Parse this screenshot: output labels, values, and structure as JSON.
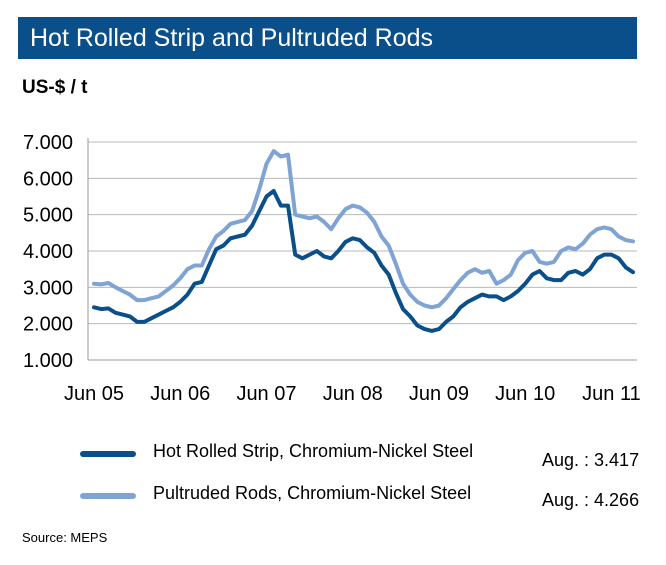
{
  "header": {
    "title": "Hot Rolled Strip and Pultruded Rods",
    "unit": "US-$ / t"
  },
  "legend": [
    {
      "label": "Hot Rolled Strip, Chromium-Nickel Steel",
      "note": "Aug. : 3.417"
    },
    {
      "label": "Pultruded Rods, Chromium-Nickel Steel",
      "note": "Aug. : 4.266"
    }
  ],
  "source": "Source: MEPS",
  "colors": {
    "hot_rolled": "#0b4f8a",
    "pultruded": "#7fa4d3",
    "title_bar": "#0b4f8a",
    "grid": "#b9b9b9"
  },
  "chart_data": {
    "type": "line",
    "title": "Hot Rolled Strip and Pultruded Rods",
    "ylabel": "US-$ / t",
    "ylim": [
      1000,
      7000
    ],
    "yticks": [
      1000,
      2000,
      3000,
      4000,
      5000,
      6000,
      7000
    ],
    "ytick_labels": [
      "1.000",
      "2.000",
      "3.000",
      "4.000",
      "5.000",
      "6.000",
      "7.000"
    ],
    "xtick_labels": [
      "Jun 05",
      "Jun 06",
      "Jun 07",
      "Jun 08",
      "Jun 09",
      "Jun 10",
      "Jun 11"
    ],
    "x_start": "2005-06",
    "grid": "horizontal",
    "legend_position": "bottom",
    "series": [
      {
        "name": "Hot Rolled Strip, Chromium-Nickel Steel",
        "values": [
          2450,
          2400,
          2420,
          2300,
          2250,
          2200,
          2050,
          2050,
          2150,
          2250,
          2350,
          2450,
          2600,
          2800,
          3100,
          3150,
          3600,
          4050,
          4150,
          4350,
          4400,
          4450,
          4700,
          5100,
          5500,
          5650,
          5250,
          5250,
          3900,
          3800,
          3900,
          4000,
          3850,
          3800,
          4000,
          4250,
          4350,
          4300,
          4100,
          3950,
          3600,
          3350,
          2850,
          2400,
          2200,
          1950,
          1850,
          1800,
          1850,
          2050,
          2200,
          2450,
          2600,
          2700,
          2800,
          2750,
          2750,
          2650,
          2750,
          2900,
          3100,
          3350,
          3450,
          3250,
          3200,
          3200,
          3400,
          3450,
          3350,
          3500,
          3800,
          3900,
          3900,
          3800,
          3550,
          3417
        ]
      },
      {
        "name": "Pultruded Rods, Chromium-Nickel Steel",
        "values": [
          3100,
          3080,
          3120,
          3000,
          2900,
          2800,
          2650,
          2650,
          2700,
          2750,
          2900,
          3050,
          3250,
          3500,
          3600,
          3600,
          4050,
          4400,
          4550,
          4750,
          4800,
          4850,
          5100,
          5700,
          6400,
          6750,
          6600,
          6650,
          5000,
          4950,
          4900,
          4950,
          4800,
          4600,
          4900,
          5150,
          5250,
          5200,
          5050,
          4800,
          4400,
          4150,
          3650,
          3100,
          2800,
          2600,
          2500,
          2450,
          2500,
          2700,
          2950,
          3200,
          3400,
          3500,
          3400,
          3450,
          3100,
          3200,
          3350,
          3750,
          3950,
          4000,
          3700,
          3650,
          3700,
          4000,
          4100,
          4050,
          4200,
          4450,
          4600,
          4650,
          4600,
          4400,
          4300,
          4266
        ]
      }
    ]
  }
}
